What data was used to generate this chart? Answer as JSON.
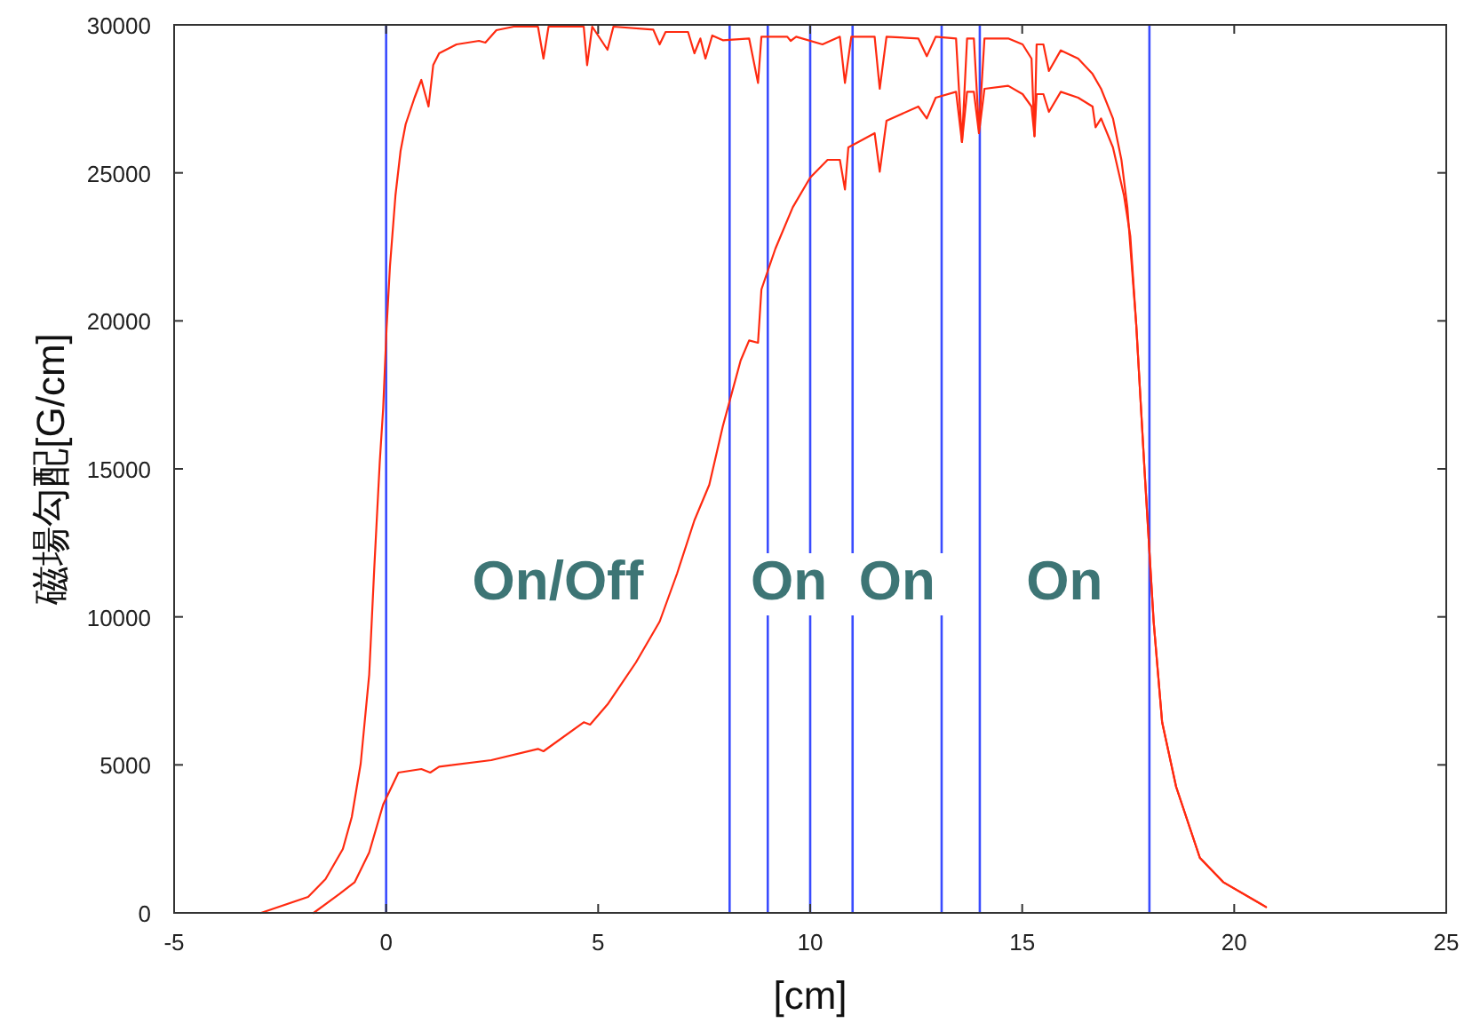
{
  "chart_data": {
    "type": "line",
    "xlabel": "[cm]",
    "ylabel": "磁場勾配[G/cm]",
    "xlim": [
      -5,
      25
    ],
    "xticks": [
      -5,
      0,
      5,
      10,
      15,
      20,
      25
    ],
    "ylim": [
      0,
      30000
    ],
    "yticks": [
      0,
      5000,
      10000,
      15000,
      20000,
      25000,
      30000
    ],
    "grid": false,
    "marker": "none",
    "line_style": "solid",
    "series": [
      {
        "color": "#ff2a10",
        "x": [
          -2.95,
          -1.84,
          -1.43,
          -1.02,
          -0.81,
          -0.6,
          -0.4,
          -0.28,
          -0.15,
          -0.07,
          0.01,
          0.09,
          0.22,
          0.34,
          0.46,
          0.67,
          0.83,
          1.0,
          1.11,
          1.25,
          1.66,
          2.19,
          2.34,
          2.6,
          3.01,
          3.58,
          3.71,
          3.83,
          4.66,
          4.74,
          4.86,
          5.22,
          5.36,
          6.3,
          6.45,
          6.59,
          7.12,
          7.27,
          7.41,
          7.53,
          7.69,
          7.94,
          8.56,
          8.77,
          8.85,
          9.46,
          9.54,
          9.67,
          10.29,
          10.7,
          10.82,
          10.97,
          11.52,
          11.64,
          11.8,
          12.55,
          12.75,
          12.96,
          13.44,
          13.58,
          13.7,
          13.86,
          13.98,
          14.11,
          14.67,
          15.01,
          15.22,
          15.29,
          15.34,
          15.5,
          15.63,
          15.91,
          16.32,
          16.66,
          16.86,
          17.14,
          17.34,
          17.48,
          17.69,
          17.89,
          18.1,
          18.3,
          18.63,
          19.19,
          19.74,
          20.75
        ],
        "values": [
          0,
          540,
          1140,
          2160,
          3240,
          5040,
          8040,
          11640,
          15240,
          17040,
          19740,
          21840,
          24240,
          25740,
          26640,
          27540,
          28140,
          27240,
          28640,
          29040,
          29340,
          29460,
          29400,
          29820,
          29940,
          29940,
          28860,
          29940,
          29940,
          28640,
          29940,
          29160,
          29940,
          29840,
          29340,
          29760,
          29760,
          29040,
          29540,
          28860,
          29640,
          29480,
          29540,
          28040,
          29600,
          29600,
          29460,
          29600,
          29340,
          29600,
          28040,
          29600,
          29600,
          27840,
          29600,
          29540,
          28940,
          29600,
          29540,
          26040,
          29540,
          29540,
          26460,
          29540,
          29540,
          29340,
          28860,
          26240,
          29340,
          29340,
          28440,
          29140,
          28860,
          28340,
          27840,
          26840,
          25440,
          23840,
          19860,
          14840,
          9840,
          6440,
          4260,
          1860,
          1040,
          200
        ]
      },
      {
        "color": "#ff2a10",
        "x": [
          -1.71,
          -1.1,
          -0.74,
          -0.4,
          -0.07,
          0.29,
          0.83,
          1.04,
          1.25,
          2.48,
          3.58,
          3.71,
          4.66,
          4.81,
          5.22,
          5.89,
          6.45,
          6.86,
          7.27,
          7.62,
          7.94,
          8.36,
          8.56,
          8.77,
          8.85,
          9.18,
          9.59,
          10.0,
          10.41,
          10.7,
          10.82,
          10.9,
          11.52,
          11.64,
          11.8,
          12.55,
          12.75,
          12.96,
          13.44,
          13.58,
          13.7,
          13.86,
          13.98,
          14.11,
          14.67,
          15.01,
          15.22,
          15.29,
          15.34,
          15.5,
          15.63,
          15.91,
          16.32,
          16.66,
          16.73,
          16.86,
          17.14,
          17.4,
          17.55,
          17.69,
          17.89,
          18.1,
          18.3,
          18.63,
          19.19,
          19.74,
          20.75
        ],
        "values": [
          0,
          640,
          1040,
          2040,
          3660,
          4740,
          4860,
          4740,
          4940,
          5160,
          5540,
          5460,
          6440,
          6360,
          7040,
          8460,
          9840,
          11460,
          13260,
          14460,
          16440,
          18660,
          19340,
          19260,
          21060,
          22440,
          23840,
          24840,
          25440,
          25440,
          24440,
          25860,
          26340,
          25040,
          26760,
          27240,
          26840,
          27540,
          27740,
          26040,
          27740,
          27740,
          26340,
          27840,
          27940,
          27660,
          27240,
          26240,
          27660,
          27660,
          27060,
          27740,
          27540,
          27240,
          26540,
          26840,
          25860,
          24240,
          22860,
          19860,
          14840,
          9840,
          6440,
          4260,
          1860,
          1040,
          200
        ]
      }
    ],
    "ref_lines": [
      {
        "axis": "x",
        "value": 0,
        "color": "#3a4cff"
      },
      {
        "axis": "x",
        "value": 8.1,
        "color": "#3a4cff"
      },
      {
        "axis": "x",
        "value": 9,
        "color": "#3a4cff"
      },
      {
        "axis": "x",
        "value": 10,
        "color": "#3a4cff"
      },
      {
        "axis": "x",
        "value": 11,
        "color": "#3a4cff"
      },
      {
        "axis": "x",
        "value": 13.1,
        "color": "#3a4cff"
      },
      {
        "axis": "x",
        "value": 14,
        "color": "#3a4cff"
      },
      {
        "axis": "x",
        "value": 18,
        "color": "#3a4cff"
      }
    ],
    "annotations": [
      "On/Off",
      "On",
      "On",
      "On"
    ]
  }
}
